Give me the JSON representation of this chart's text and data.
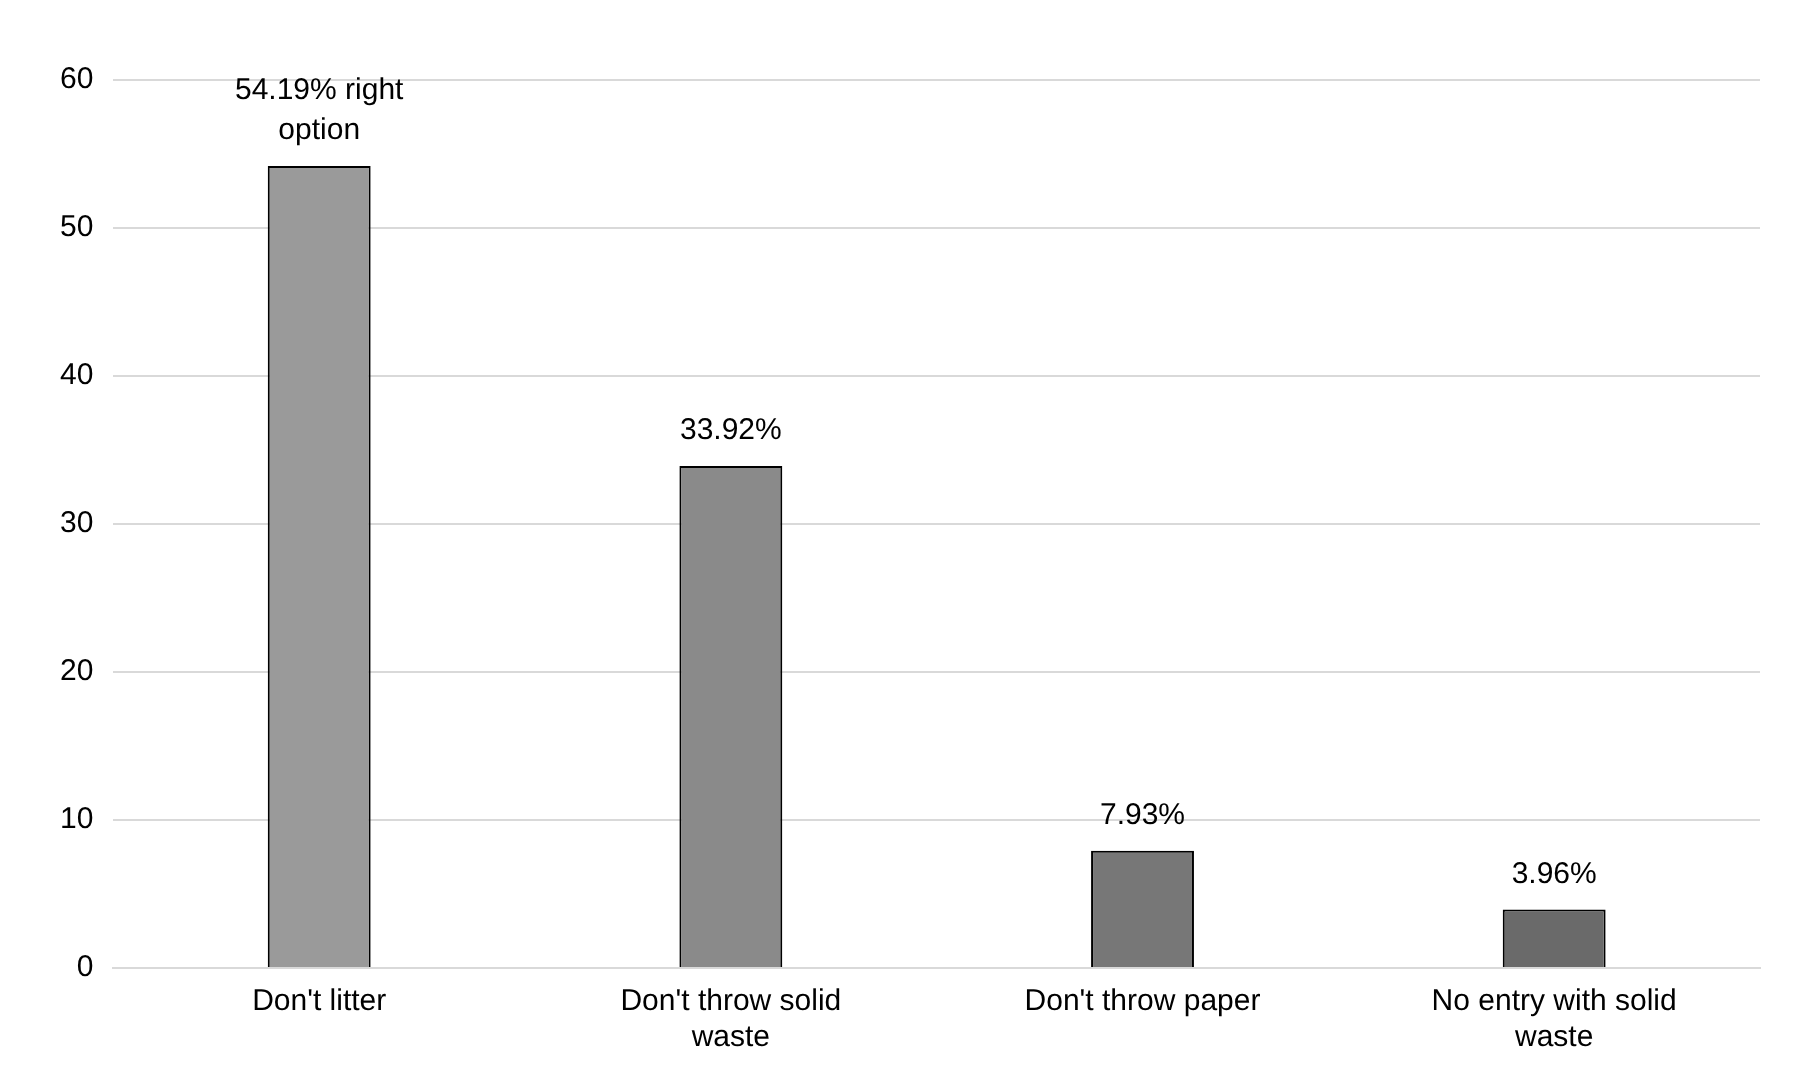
{
  "chart_data": {
    "type": "bar",
    "categories": [
      "Don't litter",
      "Don't throw solid waste",
      "Don't throw paper",
      "No entry with solid waste"
    ],
    "values": [
      54.19,
      33.92,
      7.93,
      3.96
    ],
    "colors": [
      "#9a9a9a",
      "#8a8a8a",
      "#777777",
      "#6a6a6a"
    ],
    "value_labels": [
      "54.19% right option",
      "33.92%",
      "7.93%",
      "3.96%"
    ],
    "ylim": [
      0,
      60
    ],
    "yticks": [
      0,
      10,
      20,
      30,
      40,
      50,
      60
    ],
    "grid": "y",
    "legend": false
  }
}
